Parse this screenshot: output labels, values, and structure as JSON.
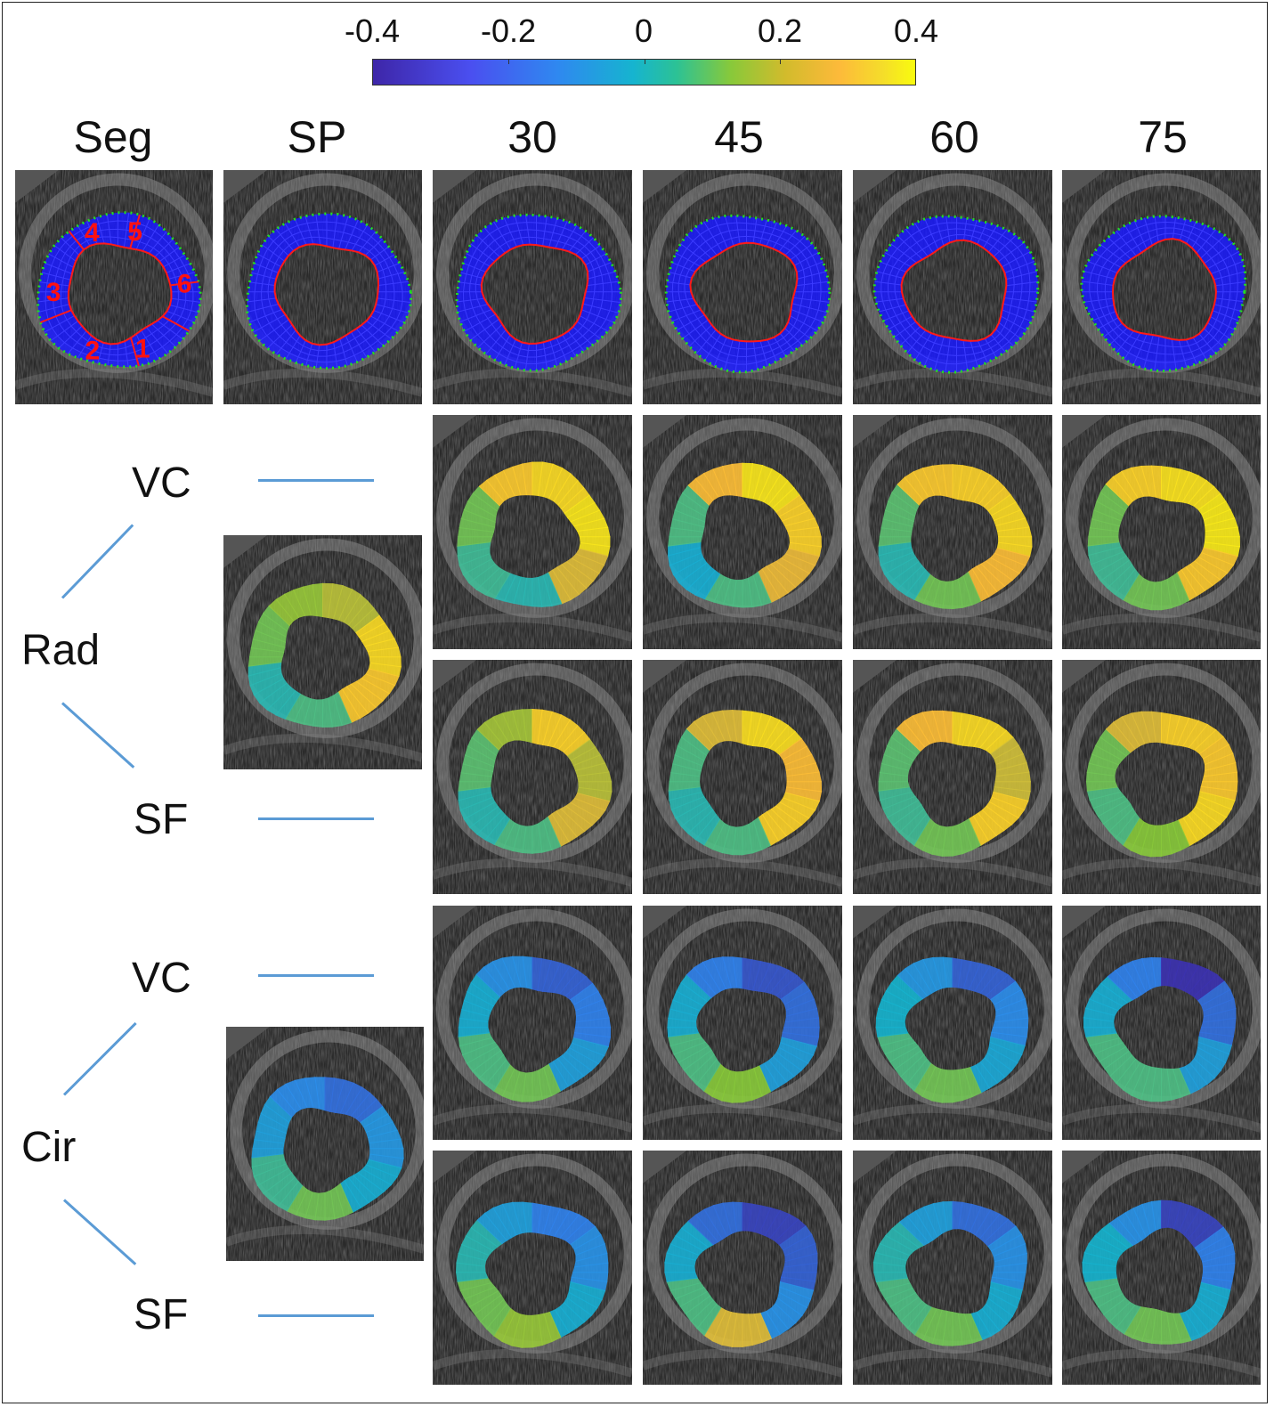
{
  "colorbar": {
    "ticks": [
      "-0.4",
      "-0.2",
      "0",
      "0.2",
      "0.4"
    ],
    "min": -0.4,
    "max": 0.4,
    "colors": [
      "#3e26a8",
      "#2f88f0",
      "#16b4cf",
      "#88c93a",
      "#fdba3a",
      "#f9fb0e"
    ]
  },
  "columns": [
    "Seg",
    "SP",
    "30",
    "45",
    "60",
    "75"
  ],
  "rows": {
    "rad": {
      "group": "Rad",
      "upper": "VC",
      "lower": "SF"
    },
    "cir": {
      "group": "Cir",
      "upper": "VC",
      "lower": "SF"
    }
  },
  "segment_labels": [
    "1",
    "2",
    "3",
    "4",
    "5",
    "6"
  ],
  "colors": {
    "mesh": "#1a1aff",
    "endo": "#ff1a1a",
    "epi": "#22dd22",
    "connector": "#5b9bd5"
  }
}
